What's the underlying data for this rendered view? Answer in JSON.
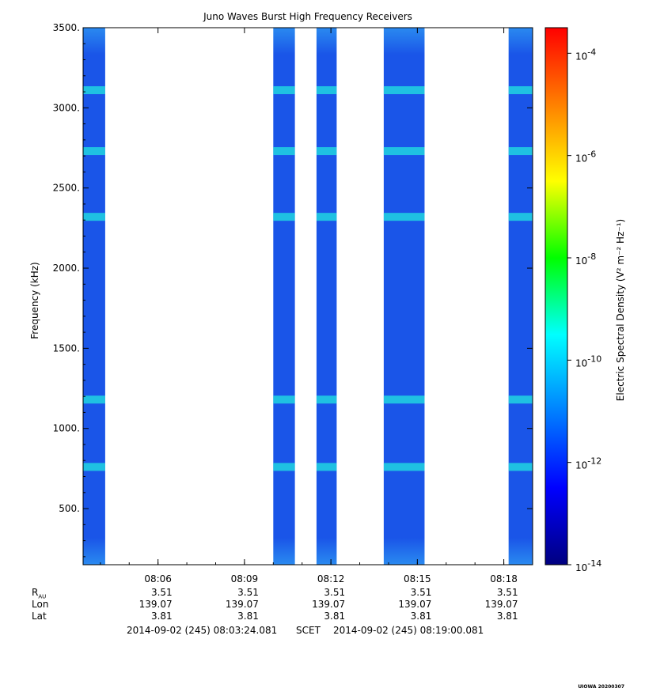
{
  "chart_data": {
    "type": "heatmap",
    "title": "Juno Waves Burst High Frequency Receivers",
    "ylabel": "Frequency (kHz)",
    "colorbar_label": "Electric Spectral Density (V² m⁻² Hz⁻¹)",
    "ylim": [
      150,
      3500
    ],
    "y_ticks": [
      500,
      1000,
      1500,
      2000,
      2500,
      3000,
      3500
    ],
    "y_tick_labels": [
      "500.",
      "1000.",
      "1500.",
      "2000.",
      "2500.",
      "3000.",
      "3500."
    ],
    "xlim": [
      "08:03:24",
      "08:19:00"
    ],
    "x_tick_labels": [
      "08:06",
      "08:09",
      "08:12",
      "08:15",
      "08:18"
    ],
    "colorbar_ticks": [
      "10-4",
      "10-6",
      "10-8",
      "10-10",
      "10-12",
      "10-14"
    ],
    "colorscale": [
      "#000080",
      "#0000ff",
      "#0080ff",
      "#00ffff",
      "#00ff00",
      "#ffff00",
      "#ff8000",
      "#ff0000"
    ],
    "data_intervals": [
      {
        "start": "08:03:24",
        "end": "08:04:10"
      },
      {
        "start": "08:10:00",
        "end": "08:10:45"
      },
      {
        "start": "08:11:30",
        "end": "08:12:12"
      },
      {
        "start": "08:13:50",
        "end": "08:15:15"
      },
      {
        "start": "08:18:10",
        "end": "08:19:00"
      }
    ],
    "emission_bands_khz": [
      3110,
      2730,
      2320,
      1180,
      760
    ],
    "ephemeris": {
      "labels": [
        "R",
        "Lon",
        "Lat"
      ],
      "r_sub": "AU",
      "rows": [
        [
          "3.51",
          "3.51",
          "3.51",
          "3.51",
          "3.51"
        ],
        [
          "139.07",
          "139.07",
          "139.07",
          "139.07",
          "139.07"
        ],
        [
          "3.81",
          "3.81",
          "3.81",
          "3.81",
          "3.81"
        ]
      ]
    }
  },
  "footer": {
    "start": "2014-09-02 (245) 08:03:24.081",
    "scet": "SCET",
    "end": "2014-09-02 (245) 08:19:00.081"
  },
  "stamp": "UIOWA 20200307"
}
